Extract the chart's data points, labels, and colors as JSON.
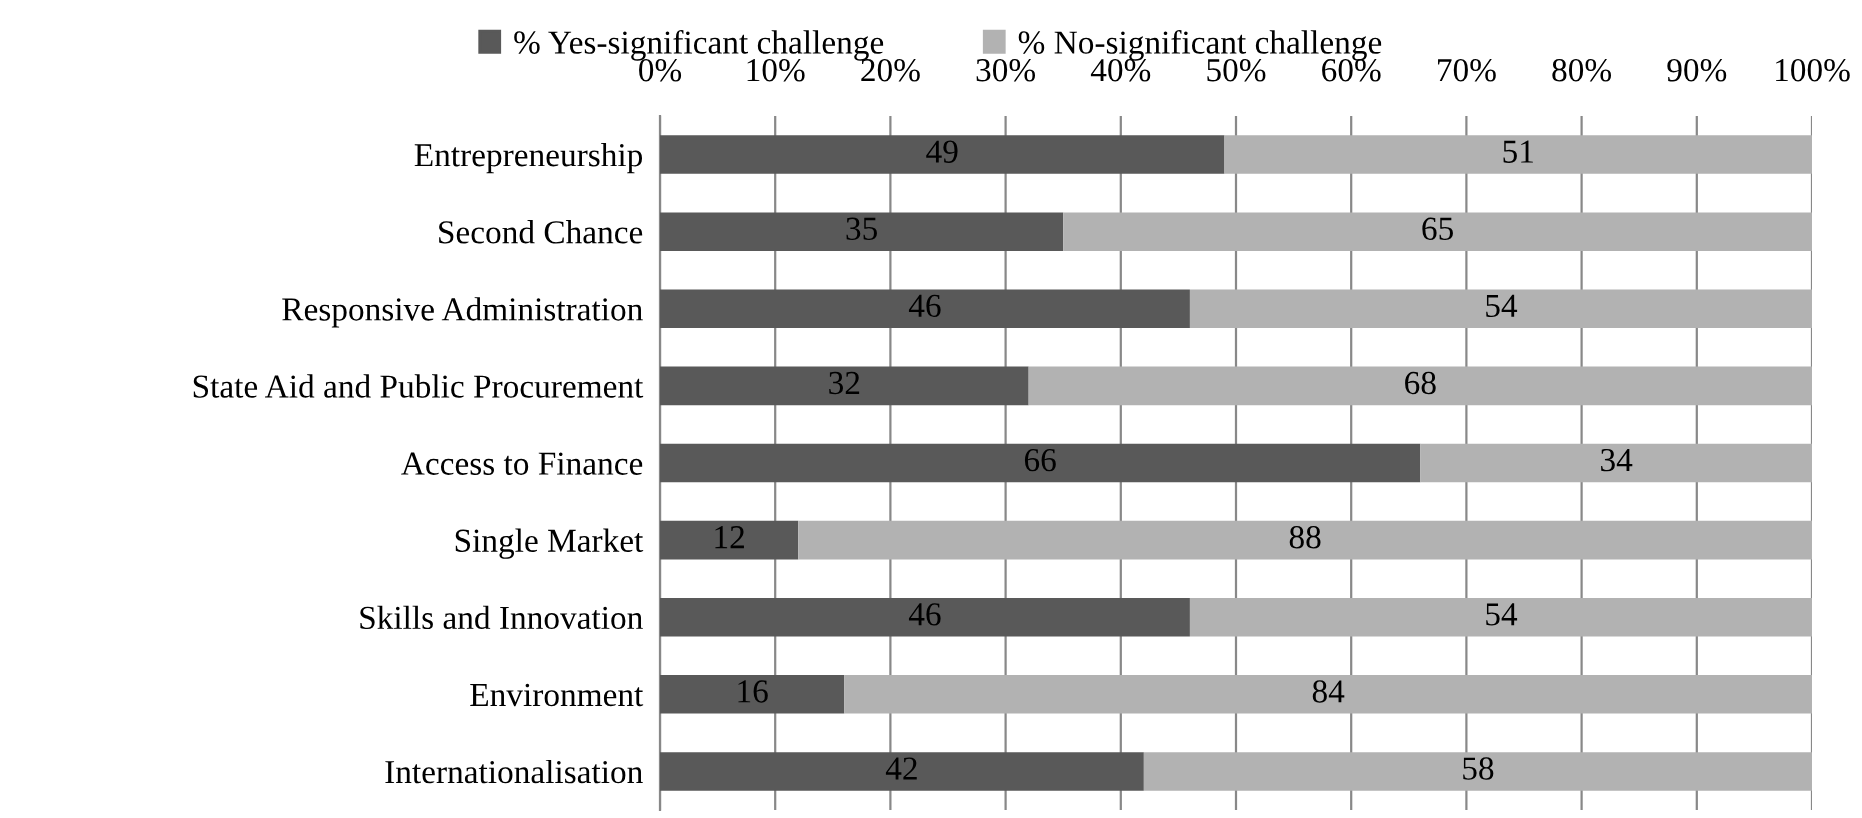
{
  "chart_data": {
    "type": "bar",
    "orientation": "horizontal",
    "stacked": true,
    "data_labels": true,
    "grid": "x",
    "legend": "top",
    "categories": [
      "Entrepreneurship",
      "Second Chance",
      "Responsive Administration",
      "State Aid and Public Procurement",
      "Access to Finance",
      "Single Market",
      "Skills and Innovation",
      "Environment",
      "Internationalisation"
    ],
    "series": [
      {
        "name": "% Yes-significant challenge",
        "color": "#595959",
        "values": [
          49,
          35,
          46,
          32,
          66,
          12,
          46,
          16,
          42
        ]
      },
      {
        "name": "% No-significant challenge",
        "color": "#b2b2b2",
        "values": [
          51,
          65,
          54,
          68,
          34,
          88,
          54,
          84,
          58
        ]
      }
    ],
    "xlim": [
      0,
      100
    ],
    "xticks": [
      {
        "value": 0,
        "label": "0%"
      },
      {
        "value": 10,
        "label": "10%"
      },
      {
        "value": 20,
        "label": "20%"
      },
      {
        "value": 30,
        "label": "30%"
      },
      {
        "value": 40,
        "label": "40%"
      },
      {
        "value": 50,
        "label": "50%"
      },
      {
        "value": 60,
        "label": "60%"
      },
      {
        "value": 70,
        "label": "70%"
      },
      {
        "value": 80,
        "label": "80%"
      },
      {
        "value": 90,
        "label": "90%"
      },
      {
        "value": 100,
        "label": "100%"
      }
    ]
  }
}
